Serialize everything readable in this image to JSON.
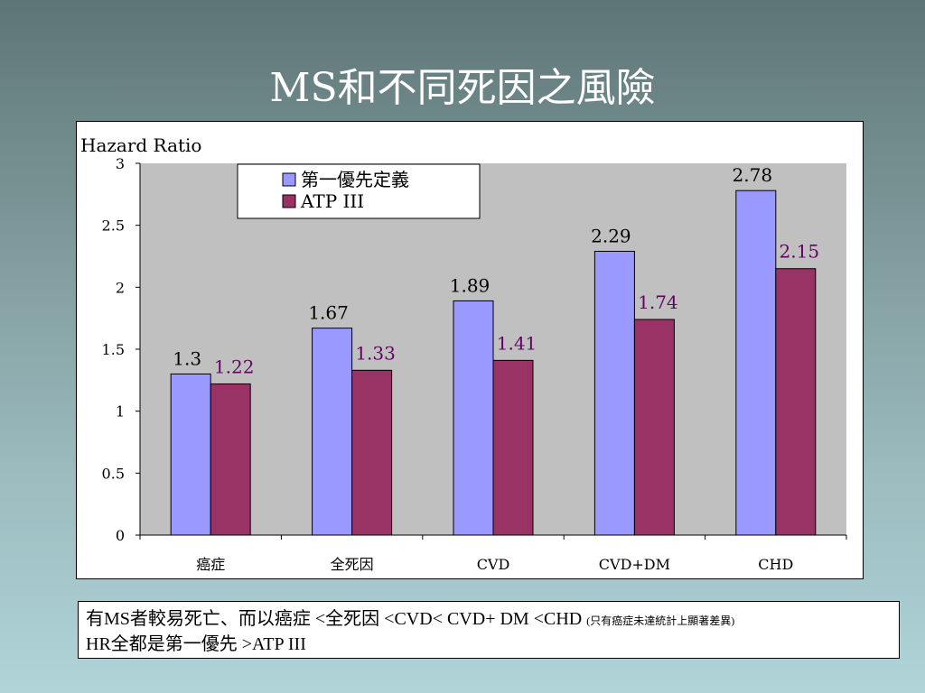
{
  "slide": {
    "title": "MS和不同死因之風險"
  },
  "chart_data": {
    "type": "bar",
    "ylabel": "Hazard Ratio",
    "ylim": [
      0,
      3
    ],
    "yticks": [
      "0",
      "0.5",
      "1",
      "1.5",
      "2",
      "2.5",
      "3"
    ],
    "categories": [
      "癌症",
      "全死因",
      "CVD",
      "CVD+DM",
      "CHD"
    ],
    "series": [
      {
        "name": "第一優先定義",
        "color": "#9999ff",
        "label_color": "#000000",
        "values": [
          1.3,
          1.67,
          1.89,
          2.29,
          2.78
        ],
        "labels": [
          "1.3",
          "1.67",
          "1.89",
          "2.29",
          "2.78"
        ]
      },
      {
        "name": "ATP III",
        "color": "#993366",
        "label_color": "#660066",
        "values": [
          1.22,
          1.33,
          1.41,
          1.74,
          2.15
        ],
        "labels": [
          "1.22",
          "1.33",
          "1.41",
          "1.74",
          "2.15"
        ]
      }
    ],
    "plot_background": "#c0c0c0",
    "grid": false,
    "legend_position": "top-left"
  },
  "note": {
    "line1": "有MS者較易死亡、而以癌症 <全死因 <CVD< CVD+ DM <CHD ",
    "line1_small": "(只有癌症未達統計上顯著差異)",
    "line2": "HR全都是第一優先  >ATP III"
  }
}
